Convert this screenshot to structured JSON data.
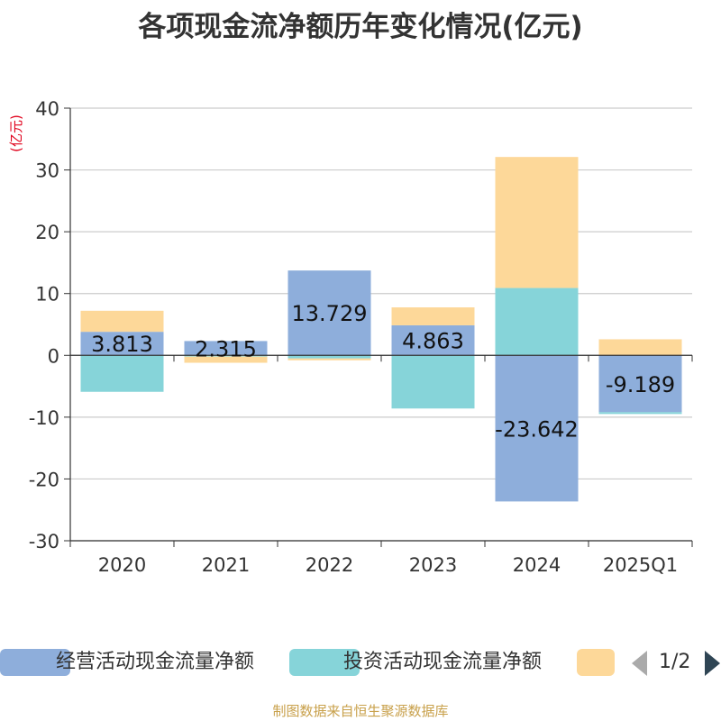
{
  "title": "各项现金流净额历年变化情况(亿元)",
  "footer": "制图数据来自恒生聚源数据库",
  "legend": {
    "items": [
      {
        "name": "经营活动现金流量净额",
        "color": "#8eaedb"
      },
      {
        "name": "投资活动现金流量净额",
        "color": "#86d4d9"
      },
      {
        "name": "",
        "color": "#fdd899"
      }
    ],
    "page": "1/2"
  },
  "chart_data": {
    "type": "bar",
    "stacked": true,
    "categories": [
      "2020",
      "2021",
      "2022",
      "2023",
      "2024",
      "2025Q1"
    ],
    "ylabel": "(亿元)",
    "ylim": [
      -30,
      40
    ],
    "yticks": [
      40,
      30,
      20,
      10,
      0,
      -10,
      -20,
      -30
    ],
    "grid": true,
    "legend_position": "bottom",
    "series": [
      {
        "name": "经营活动现金流量净额",
        "color": "#8eaedb",
        "values": [
          3.813,
          2.315,
          13.729,
          4.863,
          -23.642,
          -9.189
        ],
        "labels": [
          "3.813",
          "2.315",
          "13.729",
          "4.863",
          "-23.642",
          "-9.189"
        ]
      },
      {
        "name": "投资活动现金流量净额",
        "color": "#86d4d9",
        "values": [
          -5.9,
          -0.2,
          -0.5,
          -8.6,
          10.9,
          -0.3
        ]
      },
      {
        "color": "#fdd899",
        "values": [
          3.4,
          -1.0,
          -0.3,
          2.9,
          21.2,
          2.6
        ]
      }
    ]
  }
}
